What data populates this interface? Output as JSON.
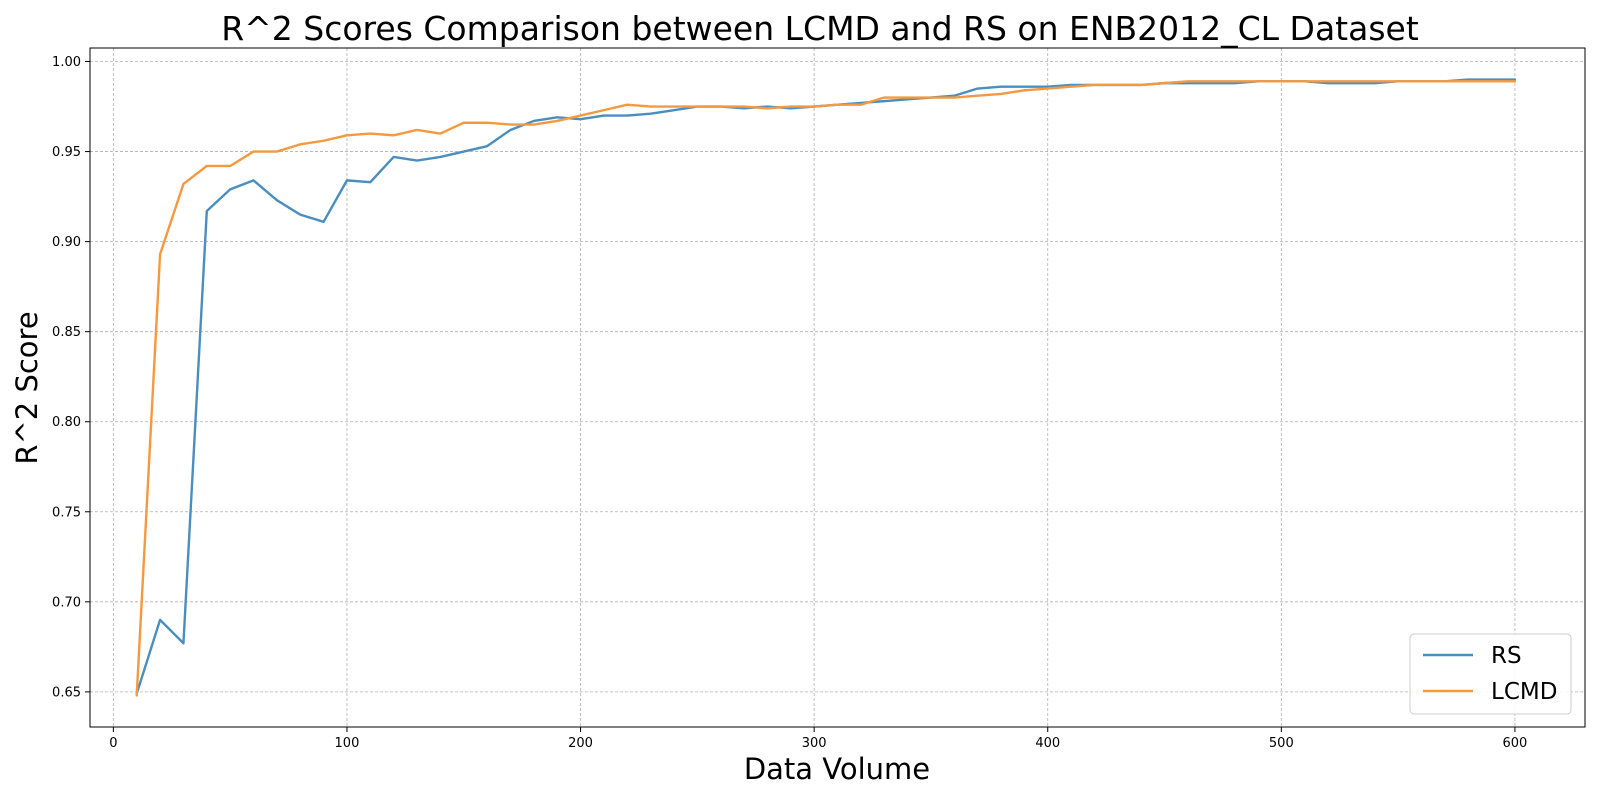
{
  "chart_data": {
    "type": "line",
    "title": "R^2 Scores Comparison between LCMD and RS on ENB2012_CL Dataset",
    "xlabel": "Data Volume",
    "ylabel": "R^2 Score",
    "xlim": [
      -10,
      630
    ],
    "ylim": [
      0.6305,
      1.0075
    ],
    "xticks": [
      0,
      100,
      200,
      300,
      400,
      500,
      600
    ],
    "yticks": [
      0.65,
      0.7,
      0.75,
      0.8,
      0.85,
      0.9,
      0.95,
      1.0
    ],
    "grid": true,
    "legend_position": "lower-right",
    "x": [
      10,
      20,
      30,
      40,
      50,
      60,
      70,
      80,
      90,
      100,
      110,
      120,
      130,
      140,
      150,
      160,
      170,
      180,
      190,
      200,
      210,
      220,
      230,
      240,
      250,
      260,
      270,
      280,
      290,
      300,
      310,
      320,
      330,
      340,
      350,
      360,
      370,
      380,
      390,
      400,
      410,
      420,
      430,
      440,
      450,
      460,
      470,
      480,
      490,
      500,
      510,
      520,
      530,
      540,
      550,
      560,
      570,
      580,
      590,
      600
    ],
    "series": [
      {
        "name": "RS",
        "color": "#4a8ec0",
        "values": [
          0.649,
          0.69,
          0.677,
          0.917,
          0.929,
          0.934,
          0.923,
          0.915,
          0.911,
          0.934,
          0.933,
          0.947,
          0.945,
          0.947,
          0.95,
          0.953,
          0.962,
          0.967,
          0.969,
          0.968,
          0.97,
          0.97,
          0.971,
          0.973,
          0.975,
          0.975,
          0.974,
          0.975,
          0.974,
          0.975,
          0.976,
          0.977,
          0.978,
          0.979,
          0.98,
          0.981,
          0.985,
          0.986,
          0.986,
          0.986,
          0.987,
          0.987,
          0.987,
          0.987,
          0.988,
          0.988,
          0.988,
          0.988,
          0.989,
          0.989,
          0.989,
          0.988,
          0.988,
          0.988,
          0.989,
          0.989,
          0.989,
          0.99,
          0.99,
          0.99
        ]
      },
      {
        "name": "LCMD",
        "color": "#f5993f",
        "values": [
          0.648,
          0.893,
          0.932,
          0.942,
          0.942,
          0.95,
          0.95,
          0.954,
          0.956,
          0.959,
          0.96,
          0.959,
          0.962,
          0.96,
          0.966,
          0.966,
          0.965,
          0.965,
          0.967,
          0.97,
          0.973,
          0.976,
          0.975,
          0.975,
          0.975,
          0.975,
          0.975,
          0.974,
          0.975,
          0.975,
          0.976,
          0.976,
          0.98,
          0.98,
          0.98,
          0.98,
          0.981,
          0.982,
          0.984,
          0.985,
          0.986,
          0.987,
          0.987,
          0.987,
          0.988,
          0.989,
          0.989,
          0.989,
          0.989,
          0.989,
          0.989,
          0.989,
          0.989,
          0.989,
          0.989,
          0.989,
          0.989,
          0.989,
          0.989,
          0.989
        ]
      }
    ]
  }
}
